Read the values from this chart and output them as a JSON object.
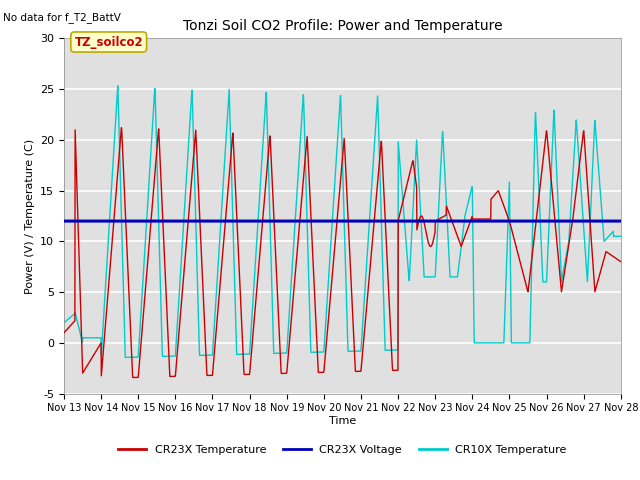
{
  "title": "Tonzi Soil CO2 Profile: Power and Temperature",
  "no_data_text": "No data for f_T2_BattV",
  "ylabel": "Power (V) / Temperature (C)",
  "xlabel": "Time",
  "ylim": [
    -5,
    30
  ],
  "xlim": [
    0,
    15
  ],
  "xtick_labels": [
    "Nov 13",
    "Nov 14",
    "Nov 15",
    "Nov 16",
    "Nov 17",
    "Nov 18",
    "Nov 19",
    "Nov 20",
    "Nov 21",
    "Nov 22",
    "Nov 23",
    "Nov 24",
    "Nov 25",
    "Nov 26",
    "Nov 27",
    "Nov 28"
  ],
  "xtick_positions": [
    0,
    1,
    2,
    3,
    4,
    5,
    6,
    7,
    8,
    9,
    10,
    11,
    12,
    13,
    14,
    15
  ],
  "ytick_positions": [
    -5,
    0,
    5,
    10,
    15,
    20,
    25,
    30
  ],
  "ytick_labels": [
    "-5",
    "0",
    "5",
    "10",
    "15",
    "20",
    "25",
    "30"
  ],
  "voltage_value": 12.0,
  "plot_bg_color": "#e0e0e0",
  "grid_color": "#ffffff",
  "cr23x_color": "#cc0000",
  "cr10x_color": "#00cccc",
  "voltage_color": "#0000bb",
  "annotation_label": "TZ_soilco2",
  "annotation_bg": "#ffffcc",
  "annotation_border": "#bbaa00",
  "legend_labels": [
    "CR23X Temperature",
    "CR23X Voltage",
    "CR10X Temperature"
  ]
}
